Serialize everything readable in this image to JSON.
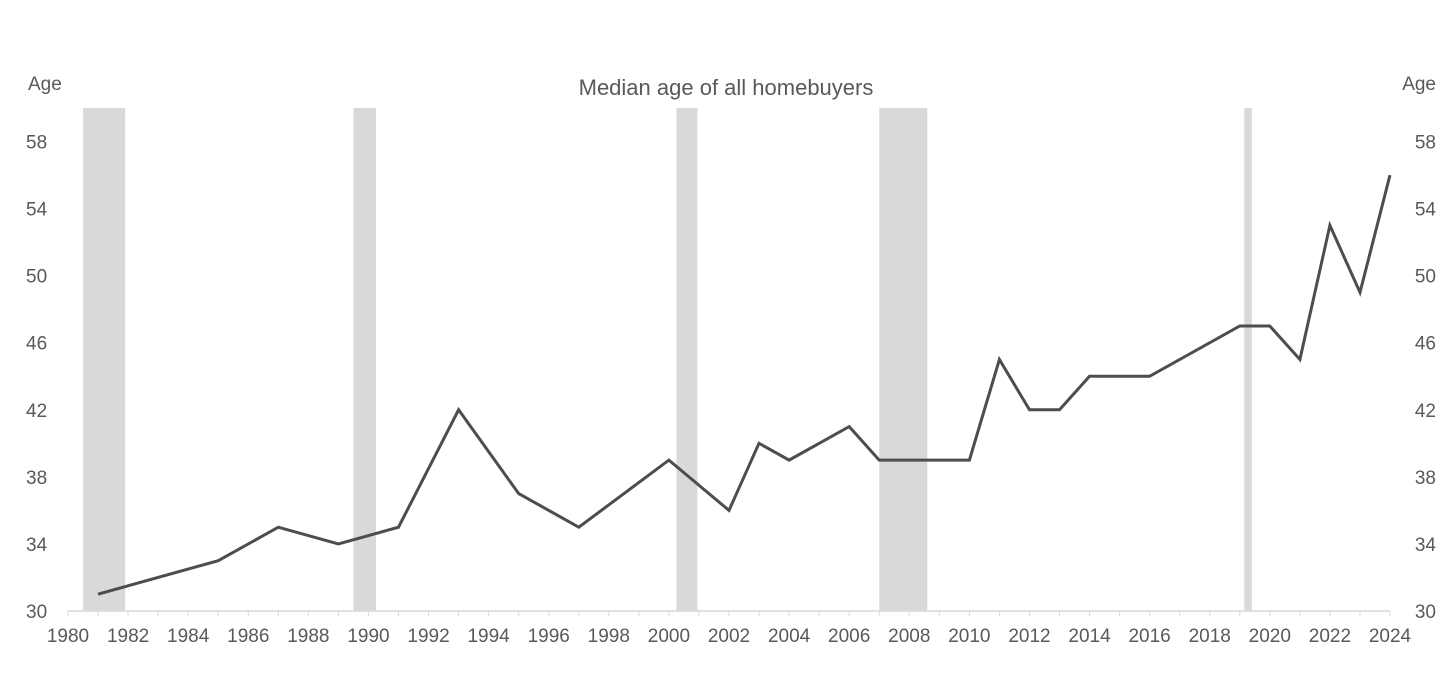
{
  "chart_data": {
    "type": "line",
    "title": "Median age of all homebuyers",
    "ylabel_left": "Age",
    "ylabel_right": "Age",
    "xlabel": "",
    "xlim": [
      1980,
      2024
    ],
    "ylim": [
      30,
      60
    ],
    "x_ticks": [
      1980,
      1982,
      1984,
      1986,
      1988,
      1990,
      1992,
      1994,
      1996,
      1998,
      2000,
      2002,
      2004,
      2006,
      2008,
      2010,
      2012,
      2014,
      2016,
      2018,
      2020,
      2022,
      2024
    ],
    "y_ticks": [
      30,
      34,
      38,
      42,
      46,
      50,
      54,
      58
    ],
    "grid": false,
    "legend": "none",
    "line_color": "#4d4d4d",
    "recession_color": "#d9d9d9",
    "recessions": [
      {
        "start": 1980.5,
        "end": 1981.9
      },
      {
        "start": 1989.5,
        "end": 1990.25
      },
      {
        "start": 2000.25,
        "end": 2000.95
      },
      {
        "start": 2007.0,
        "end": 2008.6
      },
      {
        "start": 2019.15,
        "end": 2019.4
      }
    ],
    "series": [
      {
        "x": [
          1981,
          1985,
          1987,
          1989,
          1991,
          1993,
          1995,
          1997,
          2000,
          2002,
          2003,
          2004,
          2006,
          2007,
          2010,
          2011,
          2012,
          2013,
          2014,
          2016,
          2019,
          2020,
          2021,
          2022,
          2023,
          2024
        ],
        "values": [
          31,
          33,
          35,
          34,
          35,
          42,
          37,
          35,
          39,
          36,
          40,
          39,
          41,
          39,
          39,
          45,
          42,
          42,
          44,
          44,
          47,
          47,
          45,
          53,
          49,
          56
        ]
      }
    ]
  }
}
